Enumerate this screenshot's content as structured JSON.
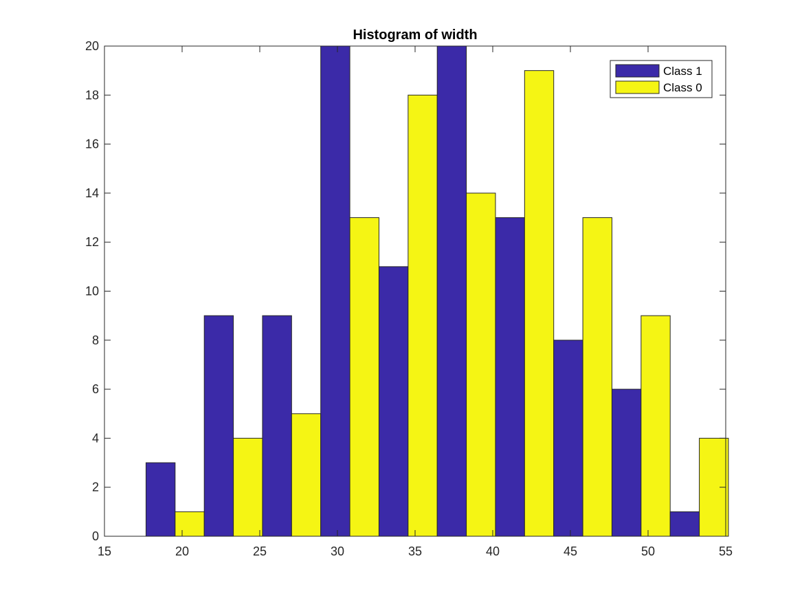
{
  "chart_data": {
    "type": "bar",
    "title": "Histogram of width",
    "xlabel": "",
    "ylabel": "",
    "xlim": [
      15,
      55
    ],
    "ylim": [
      0,
      20
    ],
    "xticks": [
      15,
      20,
      25,
      30,
      35,
      40,
      45,
      50,
      55
    ],
    "yticks": [
      0,
      2,
      4,
      6,
      8,
      10,
      12,
      14,
      16,
      18,
      20
    ],
    "bin_centers": [
      19.55,
      23.3,
      27.05,
      30.8,
      34.55,
      38.3,
      42.05,
      45.8,
      49.55,
      53.3
    ],
    "bin_width": 3.75,
    "series": [
      {
        "name": "Class 1",
        "color": "#3b2aa8",
        "values": [
          3,
          9,
          9,
          20,
          11,
          20,
          13,
          8,
          6,
          1
        ]
      },
      {
        "name": "Class 0",
        "color": "#f5f514",
        "values": [
          1,
          4,
          5,
          13,
          18,
          14,
          19,
          13,
          9,
          4
        ]
      }
    ],
    "legend_position": "top-right",
    "grid": false
  }
}
